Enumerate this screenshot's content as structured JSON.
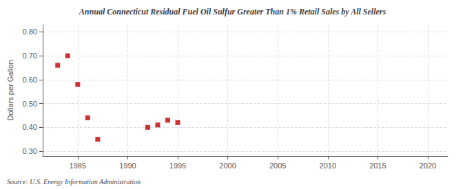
{
  "chart_data": {
    "type": "scatter",
    "title": "Annual Connecticut Residual Fuel Oil Sulfur Greater Than 1% Retail Sales by All Sellers",
    "ylabel": "Dollars per Gallon",
    "annotation": "Source: U.S. Energy Information Administration",
    "x": [
      1983,
      1984,
      1985,
      1986,
      1987,
      1992,
      1993,
      1994,
      1995
    ],
    "values": [
      0.66,
      0.7,
      0.58,
      0.44,
      0.35,
      0.4,
      0.41,
      0.43,
      0.42
    ],
    "color": "#c00000",
    "marker": "square",
    "xlim": [
      1981.5,
      2022
    ],
    "ylim": [
      0.28,
      0.83
    ],
    "xticks": [
      1985,
      1990,
      1995,
      2000,
      2005,
      2010,
      2015,
      2020
    ],
    "yticks": [
      {
        "value": 0.3,
        "label": "0.30"
      },
      {
        "value": 0.4,
        "label": "0.40"
      },
      {
        "value": 0.5,
        "label": "0.50"
      },
      {
        "value": 0.6,
        "label": "0.60"
      },
      {
        "value": 0.7,
        "label": "0.70"
      },
      {
        "value": 0.8,
        "label": "0.80"
      }
    ],
    "grid": true
  }
}
